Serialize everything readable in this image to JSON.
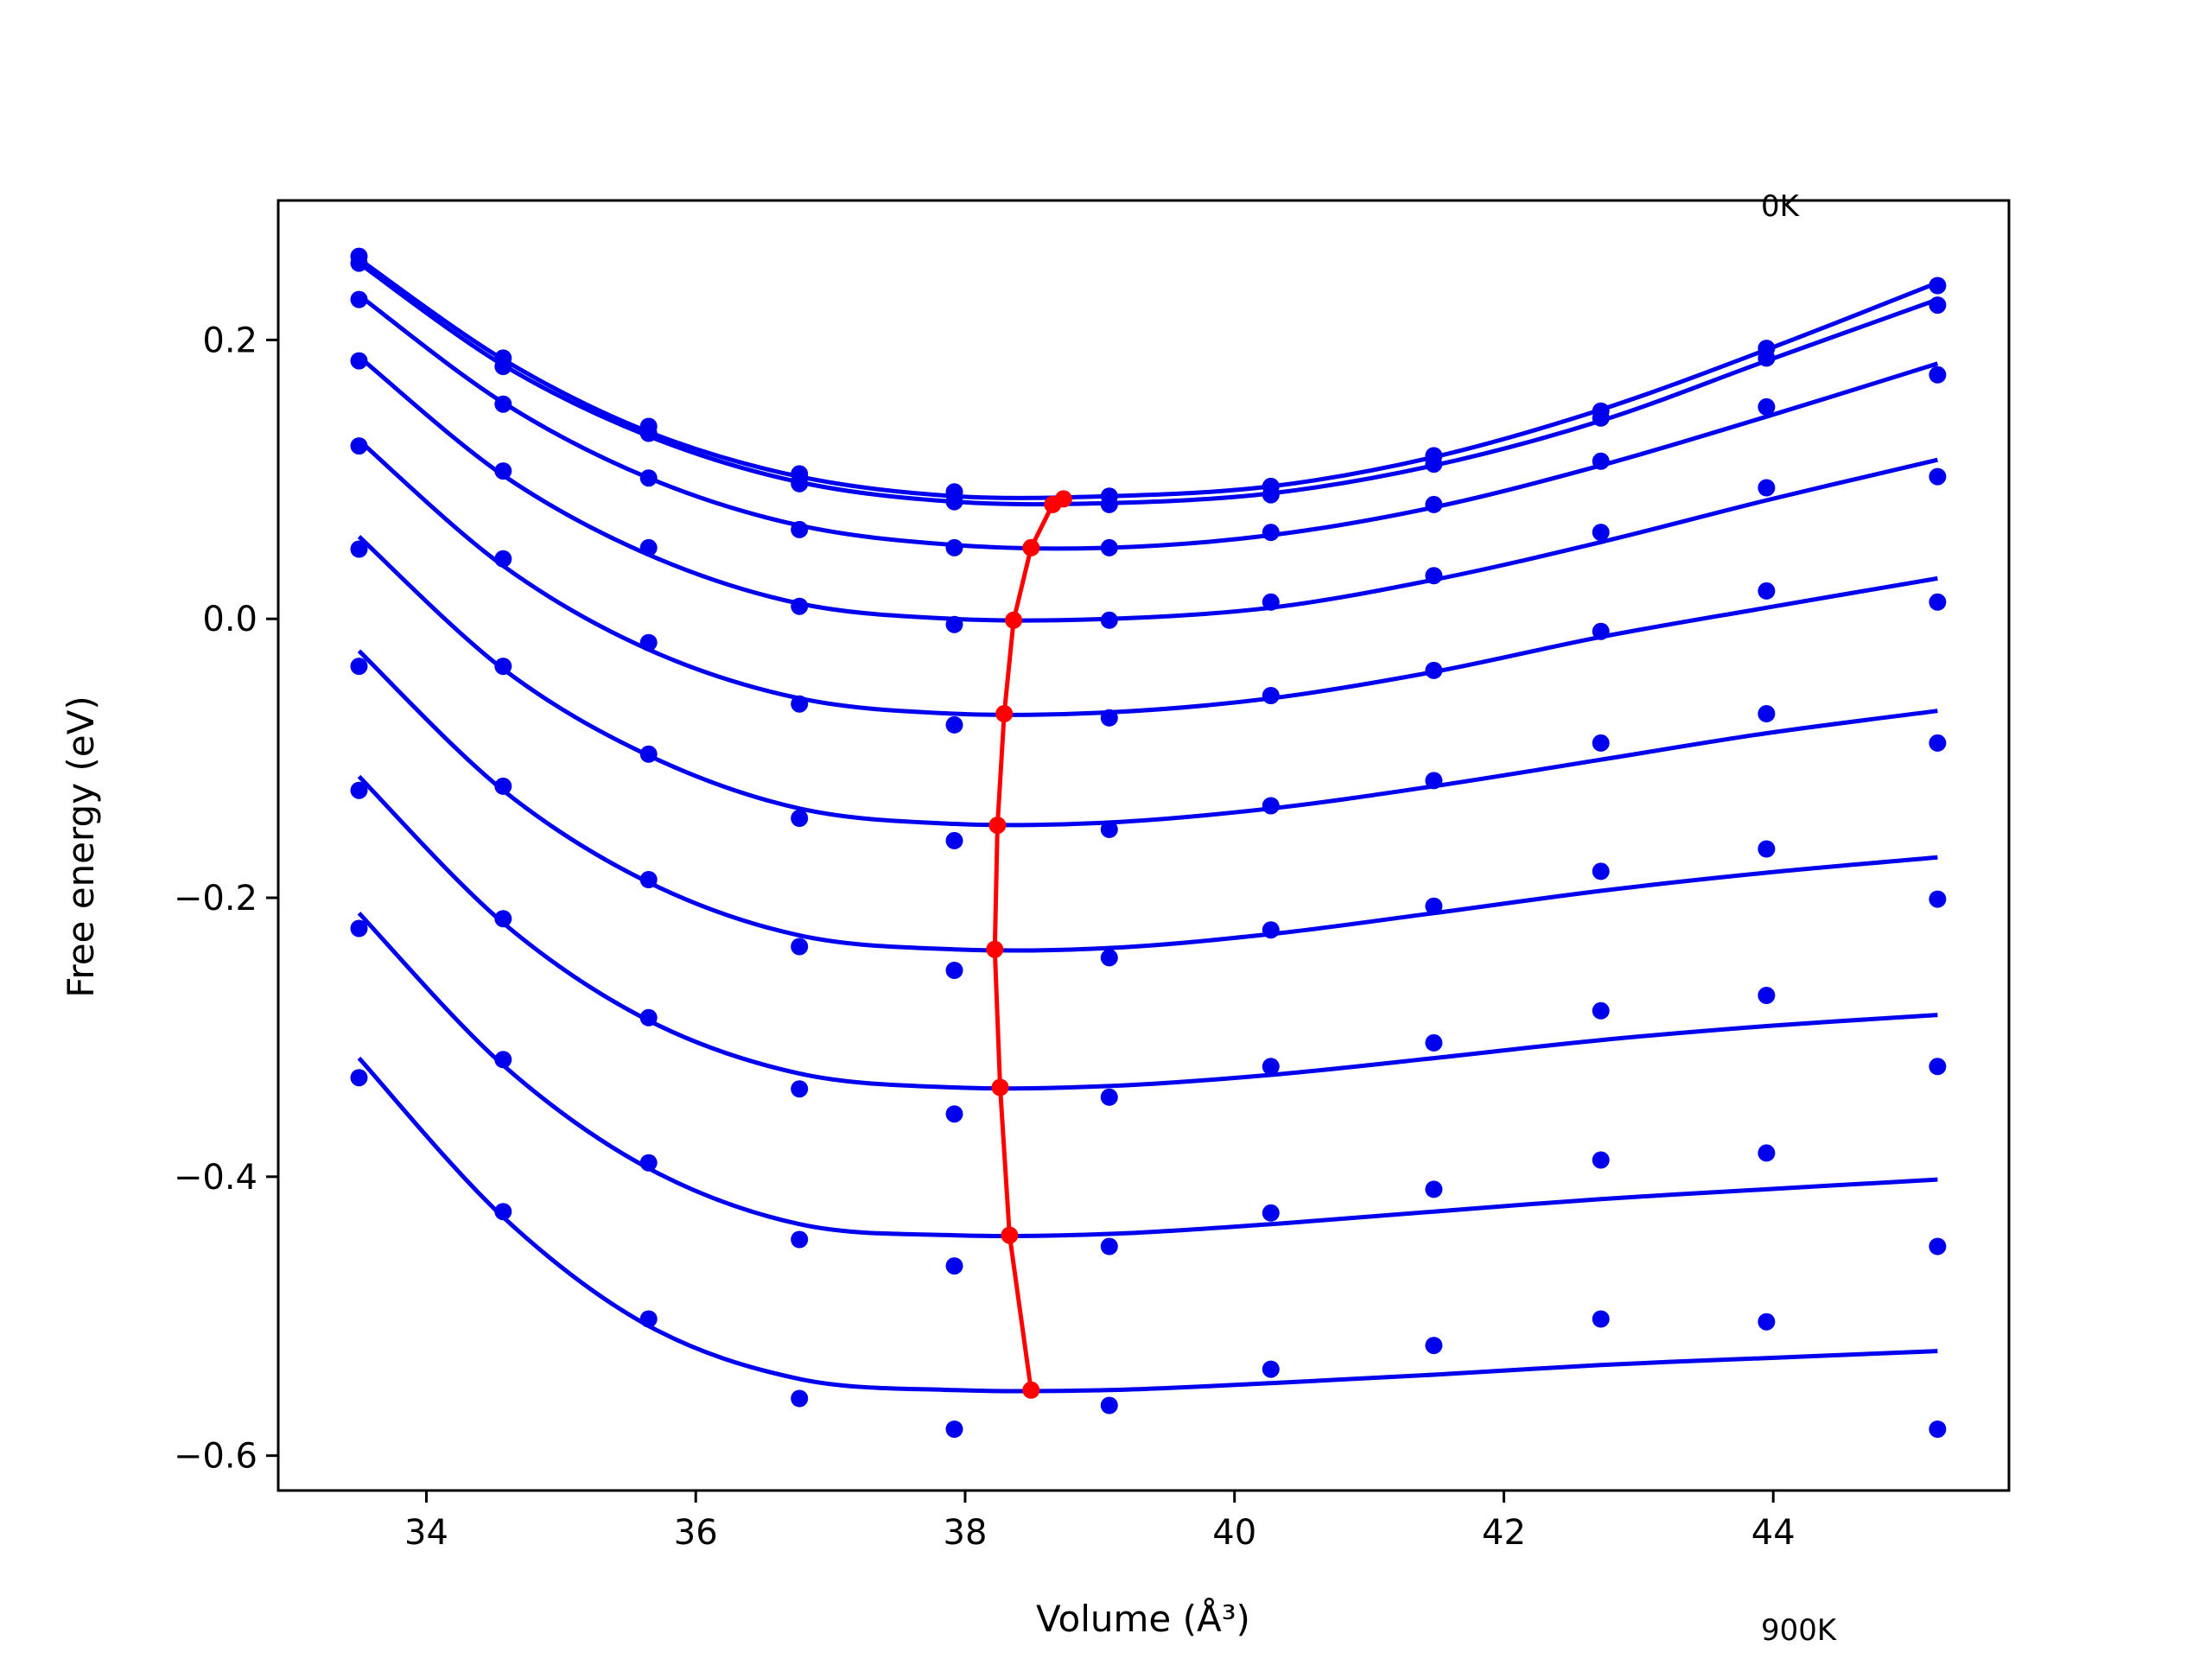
{
  "chart_data": {
    "type": "line",
    "title": "",
    "xlabel": "Volume (Å³)",
    "ylabel": "Free energy (eV)",
    "xlim": [
      32.9,
      45.75
    ],
    "ylim": [
      -0.625,
      0.3
    ],
    "xticks": [
      34,
      36,
      38,
      40,
      42,
      44
    ],
    "yticks": [
      -0.6,
      -0.4,
      -0.2,
      0.0,
      0.2
    ],
    "xtick_labels": [
      "34",
      "36",
      "38",
      "40",
      "42",
      "44"
    ],
    "ytick_labels": [
      "−0.6",
      "−0.4",
      "−0.2",
      "0.0",
      "0.2"
    ],
    "annotations": [
      "0K",
      "900K"
    ],
    "grid": false,
    "colors": {
      "fit": "#0000ee",
      "points": "#0000ee",
      "equilibrium": "#ff0000"
    },
    "x": [
      33.5,
      34.57,
      35.65,
      36.77,
      37.92,
      39.07,
      40.27,
      41.48,
      42.72,
      43.95,
      45.22
    ],
    "series": [
      {
        "values": [
          0.26,
          0.187,
          0.138,
          0.104,
          0.091,
          0.088,
          0.095,
          0.117,
          0.149,
          0.194,
          0.239
        ],
        "fit": [
          0.258,
          0.186,
          0.134,
          0.102,
          0.088,
          0.088,
          0.095,
          0.116,
          0.15,
          0.193,
          0.241
        ]
      },
      {
        "values": [
          0.255,
          0.181,
          0.133,
          0.097,
          0.084,
          0.082,
          0.089,
          0.111,
          0.144,
          0.187,
          0.225
        ],
        "fit": [
          0.255,
          0.182,
          0.131,
          0.098,
          0.084,
          0.083,
          0.09,
          0.11,
          0.142,
          0.185,
          0.229
        ]
      },
      {
        "values": [
          0.229,
          0.154,
          0.101,
          0.064,
          0.051,
          0.051,
          0.062,
          0.082,
          0.113,
          0.152,
          0.175
        ],
        "fit": [
          0.232,
          0.155,
          0.101,
          0.067,
          0.053,
          0.051,
          0.06,
          0.08,
          0.11,
          0.145,
          0.183
        ]
      },
      {
        "values": [
          0.185,
          0.106,
          0.051,
          0.009,
          -0.004,
          -0.001,
          0.012,
          0.031,
          0.062,
          0.094,
          0.102
        ],
        "fit": [
          0.188,
          0.103,
          0.046,
          0.011,
          0.0,
          0.0,
          0.008,
          0.028,
          0.055,
          0.085,
          0.114
        ]
      },
      {
        "values": [
          0.124,
          0.043,
          -0.017,
          -0.061,
          -0.076,
          -0.071,
          -0.055,
          -0.037,
          -0.009,
          0.02,
          0.012
        ],
        "fit": [
          0.128,
          0.038,
          -0.022,
          -0.057,
          -0.068,
          -0.067,
          -0.057,
          -0.038,
          -0.013,
          0.008,
          0.029
        ]
      },
      {
        "values": [
          0.05,
          -0.034,
          -0.097,
          -0.143,
          -0.159,
          -0.151,
          -0.134,
          -0.116,
          -0.089,
          -0.068,
          -0.089
        ],
        "fit": [
          0.059,
          -0.036,
          -0.098,
          -0.136,
          -0.147,
          -0.146,
          -0.136,
          -0.12,
          -0.101,
          -0.082,
          -0.066
        ]
      },
      {
        "values": [
          -0.034,
          -0.12,
          -0.187,
          -0.235,
          -0.252,
          -0.243,
          -0.223,
          -0.206,
          -0.181,
          -0.165,
          -0.201
        ],
        "fit": [
          -0.023,
          -0.123,
          -0.189,
          -0.227,
          -0.237,
          -0.236,
          -0.226,
          -0.211,
          -0.195,
          -0.182,
          -0.171
        ]
      },
      {
        "values": [
          -0.123,
          -0.215,
          -0.286,
          -0.337,
          -0.355,
          -0.343,
          -0.321,
          -0.304,
          -0.281,
          -0.27,
          -0.321
        ],
        "fit": [
          -0.113,
          -0.218,
          -0.288,
          -0.326,
          -0.336,
          -0.335,
          -0.327,
          -0.315,
          -0.302,
          -0.292,
          -0.284
        ]
      },
      {
        "values": [
          -0.222,
          -0.316,
          -0.39,
          -0.445,
          -0.464,
          -0.45,
          -0.426,
          -0.409,
          -0.388,
          -0.383,
          -0.45
        ],
        "fit": [
          -0.211,
          -0.32,
          -0.394,
          -0.434,
          -0.442,
          -0.441,
          -0.434,
          -0.425,
          -0.416,
          -0.409,
          -0.402
        ]
      },
      {
        "values": [
          -0.329,
          -0.425,
          -0.502,
          -0.559,
          -0.581,
          -0.564,
          -0.538,
          -0.521,
          -0.502,
          -0.504,
          -0.581
        ],
        "fit": [
          -0.315,
          -0.429,
          -0.507,
          -0.545,
          -0.553,
          -0.553,
          -0.548,
          -0.542,
          -0.535,
          -0.53,
          -0.525
        ]
      }
    ],
    "equilibrium": {
      "x": [
        38.73,
        38.65,
        38.49,
        38.36,
        38.29,
        38.24,
        38.22,
        38.26,
        38.33,
        38.49
      ],
      "y": [
        0.086,
        0.082,
        0.051,
        -0.001,
        -0.068,
        -0.148,
        -0.237,
        -0.336,
        -0.442,
        -0.553
      ]
    }
  }
}
